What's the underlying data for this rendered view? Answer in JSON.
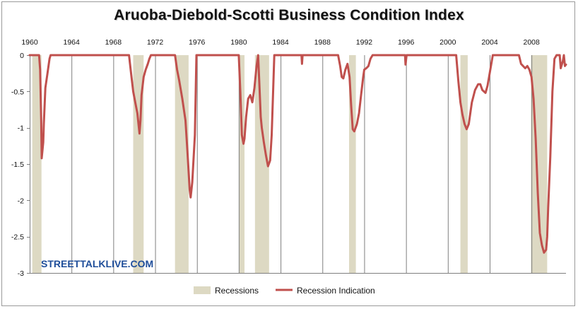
{
  "chart_data": {
    "type": "line",
    "title": "Aruoba-Diebold-Scotti Business Condition Index",
    "xlabel": "",
    "ylabel": "",
    "xlim": [
      1960,
      2011.3
    ],
    "ylim": [
      -3,
      0
    ],
    "x_ticks": [
      "1960",
      "1964",
      "1968",
      "1972",
      "1976",
      "1980",
      "1984",
      "1988",
      "1992",
      "1996",
      "2000",
      "2004",
      "2008"
    ],
    "x_tick_values": [
      1960,
      1964,
      1968,
      1972,
      1976,
      1980,
      1984,
      1988,
      1992,
      1996,
      2000,
      2004,
      2008
    ],
    "y_ticks": [
      "0",
      "-0.5",
      "-1",
      "-1.5",
      "-2",
      "-2.5",
      "-3"
    ],
    "y_tick_values": [
      0,
      -0.5,
      -1,
      -1.5,
      -2,
      -2.5,
      -3
    ],
    "colors": {
      "recession": "#ddd9c3",
      "line": "#c0504d",
      "grid": "#7f7f7f",
      "watermark": "#1f4e9a"
    },
    "series": [
      {
        "name": "Recession Indication",
        "kind": "line",
        "x": [
          1960.0,
          1960.9,
          1961.0,
          1961.1,
          1961.15,
          1961.3,
          1961.35,
          1961.5,
          1961.7,
          1961.9,
          1962.0,
          1969.5,
          1969.7,
          1969.9,
          1970.1,
          1970.3,
          1970.5,
          1970.6,
          1970.7,
          1970.9,
          1971.1,
          1971.3,
          1971.45,
          1971.6,
          1973.9,
          1974.1,
          1974.3,
          1974.6,
          1974.9,
          1975.1,
          1975.3,
          1975.4,
          1975.55,
          1975.8,
          1975.95,
          1980.0,
          1980.15,
          1980.3,
          1980.45,
          1980.55,
          1980.7,
          1980.9,
          1981.1,
          1981.3,
          1981.5,
          1981.7,
          1981.85,
          1982.0,
          1982.1,
          1982.2,
          1982.4,
          1982.6,
          1982.8,
          1983.0,
          1983.15,
          1983.4,
          1986.0,
          1986.05,
          1986.1,
          1989.5,
          1989.7,
          1989.85,
          1990.0,
          1990.2,
          1990.4,
          1990.6,
          1990.75,
          1990.9,
          1991.05,
          1991.3,
          1991.5,
          1991.7,
          1991.9,
          1992.0,
          1992.2,
          1992.4,
          1992.6,
          1992.8,
          1995.9,
          1995.95,
          1996.05,
          2000.8,
          2001.0,
          2001.2,
          2001.4,
          2001.6,
          2001.8,
          2002.0,
          2002.3,
          2002.6,
          2002.9,
          2003.1,
          2003.3,
          2003.6,
          2003.8,
          2004.0,
          2004.2,
          2004.3,
          2006.8,
          2007.0,
          2007.2,
          2007.4,
          2007.6,
          2007.8,
          2008.0,
          2008.2,
          2008.4,
          2008.6,
          2008.8,
          2009.0,
          2009.2,
          2009.4,
          2009.5,
          2009.6,
          2009.8,
          2010.0,
          2010.2,
          2010.4,
          2010.55,
          2010.7,
          2010.8,
          2011.0,
          2011.1,
          2011.2,
          2011.3
        ],
        "y": [
          0,
          0,
          -0.2,
          -0.9,
          -1.42,
          -1.2,
          -0.95,
          -0.45,
          -0.25,
          -0.05,
          0,
          0,
          -0.25,
          -0.5,
          -0.65,
          -0.8,
          -1.08,
          -0.9,
          -0.55,
          -0.3,
          -0.2,
          -0.12,
          -0.05,
          0,
          0,
          -0.2,
          -0.35,
          -0.6,
          -0.9,
          -1.35,
          -1.85,
          -1.96,
          -1.75,
          -1.1,
          0,
          0,
          -0.5,
          -1.1,
          -1.22,
          -1.15,
          -0.85,
          -0.6,
          -0.55,
          -0.65,
          -0.45,
          -0.15,
          0,
          -0.5,
          -0.85,
          -1.0,
          -1.2,
          -1.38,
          -1.53,
          -1.45,
          -1.1,
          0,
          0,
          -0.12,
          0,
          0,
          -0.15,
          -0.3,
          -0.32,
          -0.2,
          -0.12,
          -0.3,
          -0.7,
          -1.02,
          -1.05,
          -0.95,
          -0.8,
          -0.55,
          -0.3,
          -0.2,
          -0.18,
          -0.15,
          -0.05,
          0,
          0,
          -0.13,
          0,
          0,
          -0.35,
          -0.65,
          -0.82,
          -0.95,
          -1.02,
          -0.95,
          -0.65,
          -0.48,
          -0.4,
          -0.4,
          -0.48,
          -0.52,
          -0.42,
          -0.25,
          -0.08,
          0,
          0,
          -0.12,
          -0.15,
          -0.18,
          -0.15,
          -0.2,
          -0.3,
          -0.6,
          -1.15,
          -1.9,
          -2.45,
          -2.62,
          -2.72,
          -2.68,
          -2.5,
          -2.1,
          -1.4,
          -0.5,
          -0.05,
          0,
          0,
          0,
          -0.18,
          -0.08,
          0,
          -0.15,
          -0.13
        ]
      },
      {
        "name": "Recessions",
        "kind": "band",
        "periods": [
          [
            1960.25,
            1961.13
          ],
          [
            1969.9,
            1970.9
          ],
          [
            1973.9,
            1975.2
          ],
          [
            1980.0,
            1980.55
          ],
          [
            1981.55,
            1982.9
          ],
          [
            1990.55,
            1991.2
          ],
          [
            2001.2,
            2001.9
          ],
          [
            2007.95,
            2009.5
          ]
        ]
      }
    ],
    "annotations": [
      "STREETTALKLIVE.COM"
    ],
    "legend_position": "bottom-center"
  }
}
